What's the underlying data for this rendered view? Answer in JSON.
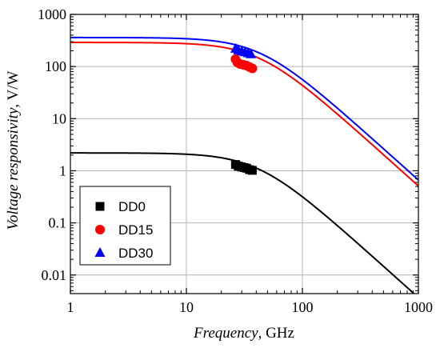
{
  "chart_data": {
    "type": "scatter",
    "title": "",
    "xlabel": {
      "italic": "Frequency",
      "rest": ", GHz"
    },
    "ylabel": {
      "italic": "Voltage responsivity",
      "rest": ", V/W"
    },
    "xscale": "log",
    "yscale": "log",
    "xlim": [
      1,
      1000
    ],
    "ylim": [
      0.0044,
      1000
    ],
    "grid": true,
    "legend_position": "lower-left",
    "x_ticks": [
      1,
      10,
      100,
      1000
    ],
    "x_tick_labels": [
      "1",
      "10",
      "100",
      "1000"
    ],
    "y_ticks": [
      0.01,
      0.1,
      1,
      10,
      100,
      1000
    ],
    "y_tick_labels": [
      "0.01",
      "0.1",
      "1",
      "10",
      "100",
      "1000"
    ],
    "series": [
      {
        "name": "DD0",
        "color": "#000000",
        "marker": "square",
        "points": [
          [
            26.5,
            1.32
          ],
          [
            28,
            1.22
          ],
          [
            30,
            1.18
          ],
          [
            31.5,
            1.15
          ],
          [
            33,
            1.12
          ],
          [
            35,
            1.05
          ],
          [
            37,
            1.02
          ]
        ],
        "fit": {
          "low_freq_value": 2.2,
          "corner_freq_ghz": 41
        }
      },
      {
        "name": "DD15",
        "color": "#ff0000",
        "marker": "circle",
        "points": [
          [
            26.5,
            138
          ],
          [
            27.5,
            120
          ],
          [
            29,
            112
          ],
          [
            31,
            108
          ],
          [
            33,
            104
          ],
          [
            35,
            98
          ],
          [
            37,
            92
          ]
        ],
        "fit": {
          "low_freq_value": 290,
          "corner_freq_ghz": 42
        }
      },
      {
        "name": "DD30",
        "color": "#0000ff",
        "marker": "triangle",
        "points": [
          [
            26.5,
            220
          ],
          [
            28,
            205
          ],
          [
            30,
            195
          ],
          [
            32,
            188
          ],
          [
            34,
            180
          ],
          [
            36,
            172
          ]
        ],
        "fit": {
          "low_freq_value": 360,
          "corner_freq_ghz": 43
        }
      }
    ]
  }
}
